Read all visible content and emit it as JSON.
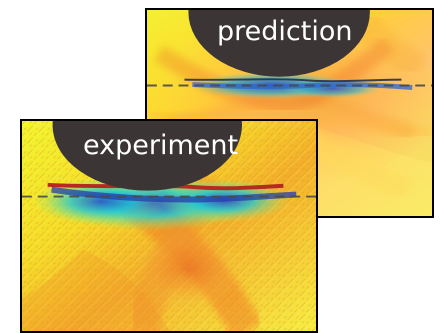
{
  "panels": {
    "prediction": {
      "label": "prediction"
    },
    "experiment": {
      "label": "experiment"
    }
  },
  "colors": {
    "background": "#ffffff",
    "border": "#000000",
    "contact_body": "#3b3535",
    "label_text": "#ffffff",
    "field_warm": "#f7e52a",
    "field_hot": "#ef7a2a",
    "field_cool": "#31c8b6",
    "field_cold": "#2748c8",
    "reference_line": "#444444"
  }
}
